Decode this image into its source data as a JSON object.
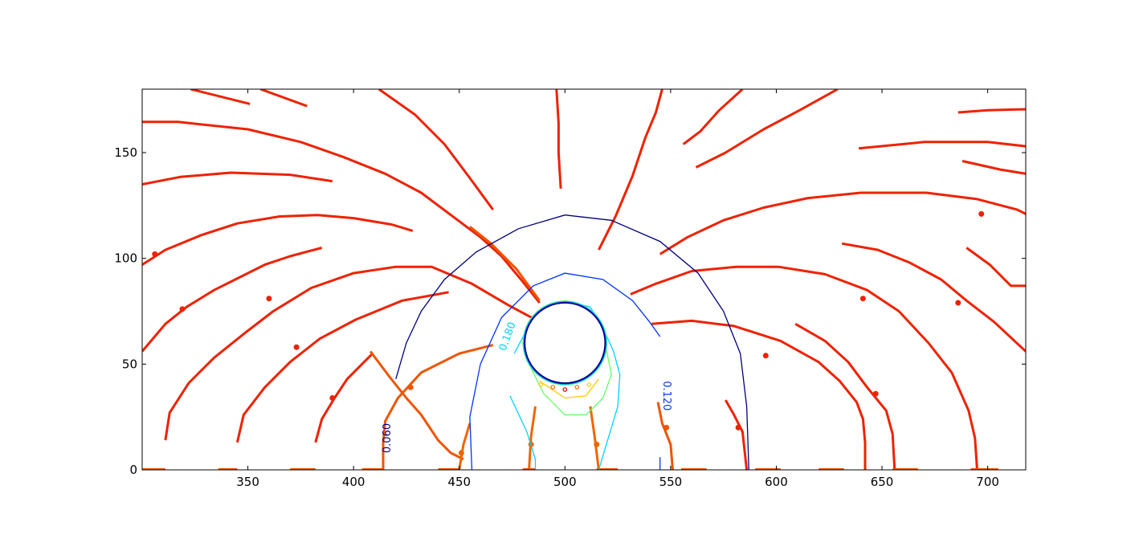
{
  "chart_data": {
    "type": "line",
    "title": "",
    "xlabel": "",
    "ylabel": "",
    "xlim": [
      300,
      718
    ],
    "ylim": [
      0,
      180
    ],
    "xticks": [
      350,
      400,
      450,
      500,
      550,
      600,
      650,
      700
    ],
    "yticks": [
      0,
      50,
      100,
      150
    ],
    "xtick_labels": [
      "350",
      "400",
      "450",
      "500",
      "550",
      "600",
      "650",
      "700"
    ],
    "ytick_labels": [
      "0",
      "50",
      "100",
      "150"
    ],
    "grid": false,
    "obstacle": {
      "center": [
        500,
        60
      ],
      "radius": 19
    },
    "contours": [
      {
        "level": "0.060",
        "color": "#00007f",
        "points": [
          [
            420,
            43
          ],
          [
            425,
            60
          ],
          [
            432,
            75
          ],
          [
            443,
            90
          ],
          [
            458,
            103
          ],
          [
            478,
            114
          ],
          [
            500,
            120.5
          ],
          [
            522,
            118
          ],
          [
            545,
            108
          ],
          [
            563,
            93
          ],
          [
            575,
            75
          ],
          [
            583,
            55
          ],
          [
            586,
            30
          ],
          [
            587,
            0
          ]
        ],
        "label": {
          "text": "0.060",
          "x": 416,
          "y": 15,
          "rotate": -90
        }
      },
      {
        "level": "0.120",
        "color": "#0033ff",
        "points": [
          [
            456,
            0
          ],
          [
            455,
            25
          ],
          [
            460,
            50
          ],
          [
            470,
            72
          ],
          [
            485,
            87
          ],
          [
            500,
            93
          ],
          [
            518,
            90
          ],
          [
            532,
            80
          ],
          [
            540,
            70
          ],
          [
            545,
            63
          ]
        ],
        "extra": [
          [
            [
              545,
              0
            ],
            [
              545,
              6
            ]
          ]
        ],
        "label": {
          "text": "0.120",
          "x": 548,
          "y": 35,
          "rotate": 90
        }
      },
      {
        "level": "0.180",
        "color": "#00d4ff",
        "points": [
          [
            474,
            35
          ],
          [
            482,
            18
          ],
          [
            486,
            5
          ],
          [
            486,
            0
          ]
        ],
        "extra": [
          [
            [
              476,
              55
            ],
            [
              485,
              72
            ],
            [
              500,
              80
            ],
            [
              512,
              77
            ],
            [
              518,
              67
            ],
            [
              523,
              56
            ],
            [
              526,
              45
            ],
            [
              525,
              30
            ],
            [
              519,
              10
            ],
            [
              516,
              0
            ]
          ]
        ],
        "label": {
          "text": "0.180",
          "x": 473,
          "y": 63,
          "rotate": -70
        }
      },
      {
        "level": "green",
        "color": "#66ff66",
        "points": [
          [
            483,
            60
          ],
          [
            484,
            48
          ],
          [
            490,
            36
          ],
          [
            500,
            26
          ],
          [
            510,
            26
          ],
          [
            518,
            34
          ],
          [
            522,
            45
          ],
          [
            520,
            55
          ],
          [
            518,
            62
          ]
        ]
      },
      {
        "level": "yellow",
        "color": "#ffcc00",
        "points": [
          [
            488,
            42
          ],
          [
            500,
            34
          ],
          [
            510,
            35
          ],
          [
            516,
            43
          ]
        ]
      }
    ],
    "streamlines": [
      {
        "color": "#ee2200",
        "points": [
          [
            300,
            164.5
          ],
          [
            317,
            164.5
          ],
          [
            350,
            161
          ],
          [
            375,
            155
          ],
          [
            395,
            148
          ],
          [
            415,
            140
          ],
          [
            432,
            131
          ],
          [
            448,
            119
          ],
          [
            460,
            110
          ],
          [
            470,
            101
          ],
          [
            480,
            89
          ],
          [
            488,
            79
          ]
        ]
      },
      {
        "color": "#ee2200",
        "points": [
          [
            300,
            135
          ],
          [
            318,
            138.5
          ],
          [
            342,
            140.5
          ],
          [
            370,
            139.5
          ],
          [
            390,
            136.5
          ]
        ]
      },
      {
        "color": "#ee2200",
        "points": [
          [
            300,
            97
          ],
          [
            311,
            104
          ],
          [
            328,
            111
          ],
          [
            345,
            116.5
          ],
          [
            365,
            119.8
          ],
          [
            383,
            120.5
          ],
          [
            400,
            119
          ],
          [
            418,
            116
          ],
          [
            428,
            113
          ]
        ],
        "arrow": [
          306,
          102
        ]
      },
      {
        "color": "#ee2200",
        "points": [
          [
            300,
            56
          ],
          [
            311,
            69
          ],
          [
            321,
            77
          ],
          [
            334,
            85
          ],
          [
            346,
            91
          ],
          [
            358,
            97
          ],
          [
            370,
            101
          ],
          [
            385,
            105
          ]
        ],
        "arrow": [
          319,
          76
        ]
      },
      {
        "color": "#ee2200",
        "points": [
          [
            311,
            14
          ],
          [
            313,
            27
          ],
          [
            322,
            41
          ],
          [
            334,
            53
          ],
          [
            349,
            65
          ],
          [
            362,
            75
          ],
          [
            380,
            86
          ],
          [
            400,
            93
          ],
          [
            420,
            96
          ],
          [
            437,
            96
          ],
          [
            456,
            88
          ],
          [
            473,
            78
          ],
          [
            488,
            70
          ]
        ],
        "arrow": [
          360,
          81
        ]
      },
      {
        "color": "#ee2200",
        "points": [
          [
            345,
            13
          ],
          [
            348,
            26
          ],
          [
            358,
            39
          ],
          [
            370,
            51
          ],
          [
            384,
            62
          ],
          [
            401,
            71
          ],
          [
            423,
            80
          ],
          [
            445,
            84
          ]
        ],
        "arrow": [
          373,
          58
        ]
      },
      {
        "color": "#ee2200",
        "points": [
          [
            382,
            13
          ],
          [
            385,
            24
          ],
          [
            391,
            34
          ],
          [
            397,
            43
          ],
          [
            404,
            50
          ],
          [
            409,
            55
          ]
        ],
        "arrow": [
          390,
          34
        ]
      },
      {
        "color": "#ee2200",
        "points": [
          [
            323,
            180
          ],
          [
            351,
            173
          ]
        ]
      },
      {
        "color": "#ee2200",
        "points": [
          [
            356,
            180
          ],
          [
            378,
            172
          ]
        ]
      },
      {
        "color": "#ee2200",
        "points": [
          [
            412,
            180
          ],
          [
            429,
            168
          ],
          [
            443,
            154
          ],
          [
            455,
            138
          ],
          [
            466,
            123
          ]
        ]
      },
      {
        "color": "#ee2200",
        "points": [
          [
            496,
            180
          ],
          [
            497,
            164
          ],
          [
            497,
            150
          ],
          [
            498,
            133
          ]
        ]
      },
      {
        "color": "#ee2200",
        "points": [
          [
            546,
            180
          ],
          [
            543,
            169
          ],
          [
            538,
            157
          ],
          [
            532,
            139
          ],
          [
            524,
            120
          ],
          [
            516,
            104
          ]
        ]
      },
      {
        "color": "#ee2200",
        "points": [
          [
            584,
            180
          ],
          [
            573,
            170
          ],
          [
            564,
            160
          ],
          [
            556,
            154
          ]
        ]
      },
      {
        "color": "#ee2200",
        "points": [
          [
            629,
            180
          ],
          [
            611,
            170
          ],
          [
            594,
            161
          ],
          [
            576,
            150
          ],
          [
            562,
            143
          ]
        ]
      },
      {
        "color": "#ee2200",
        "points": [
          [
            686,
            169
          ],
          [
            700,
            170
          ],
          [
            718,
            170.5
          ]
        ]
      },
      {
        "color": "#ee2200",
        "points": [
          [
            639,
            152
          ],
          [
            670,
            155
          ],
          [
            700,
            155
          ],
          [
            718,
            153
          ]
        ]
      },
      {
        "color": "#ee2200",
        "points": [
          [
            688,
            146
          ],
          [
            706,
            142
          ],
          [
            718,
            140
          ]
        ]
      },
      {
        "color": "#ee2200",
        "points": [
          [
            545,
            102
          ],
          [
            558,
            110
          ],
          [
            575,
            118
          ],
          [
            594,
            124
          ],
          [
            615,
            128.5
          ],
          [
            640,
            131
          ],
          [
            671,
            131
          ],
          [
            695,
            128
          ],
          [
            714,
            123
          ],
          [
            718,
            121
          ]
        ],
        "arrow": [
          697,
          121
        ]
      },
      {
        "color": "#ee2200",
        "points": [
          [
            631,
            107
          ],
          [
            648,
            104
          ],
          [
            663,
            98
          ],
          [
            678,
            90
          ],
          [
            690,
            80
          ],
          [
            703,
            70
          ],
          [
            718,
            56
          ]
        ],
        "arrow": [
          686,
          79
        ]
      },
      {
        "color": "#ee2200",
        "points": [
          [
            690,
            105
          ],
          [
            701,
            97
          ],
          [
            711,
            87
          ],
          [
            718,
            87
          ]
        ]
      },
      {
        "color": "#ee2200",
        "points": [
          [
            531,
            83
          ],
          [
            543,
            88
          ],
          [
            560,
            94
          ],
          [
            581,
            96
          ],
          [
            601,
            96
          ],
          [
            623,
            92.5
          ],
          [
            643,
            85
          ],
          [
            658,
            75
          ],
          [
            672,
            60
          ],
          [
            683,
            46
          ],
          [
            691,
            28
          ],
          [
            694,
            15
          ],
          [
            695,
            0
          ]
        ],
        "arrow": [
          641,
          81
        ]
      },
      {
        "color": "#ee2200",
        "points": [
          [
            609,
            69
          ],
          [
            623,
            61
          ],
          [
            634,
            51
          ],
          [
            643,
            39
          ],
          [
            652,
            28
          ],
          [
            655,
            17
          ],
          [
            656,
            0
          ]
        ],
        "arrow": [
          647,
          36
        ]
      },
      {
        "color": "#ee2200",
        "points": [
          [
            541,
            69
          ],
          [
            560,
            70.5
          ],
          [
            580,
            68
          ],
          [
            602,
            61
          ],
          [
            620,
            51
          ],
          [
            630,
            42
          ],
          [
            638,
            32
          ],
          [
            641,
            24
          ],
          [
            642,
            13
          ],
          [
            642,
            0
          ]
        ],
        "arrow": [
          595,
          54
        ]
      },
      {
        "color": "#ee2200",
        "points": [
          [
            576,
            33
          ],
          [
            580,
            26
          ],
          [
            584,
            18
          ],
          [
            586,
            0
          ]
        ],
        "arrow": [
          582,
          20
        ]
      },
      {
        "color": "#ee5500",
        "points": [
          [
            408,
            56
          ],
          [
            417,
            44
          ],
          [
            425,
            34
          ],
          [
            432,
            26
          ],
          [
            440,
            14
          ],
          [
            446,
            8
          ],
          [
            452,
            5
          ]
        ]
      },
      {
        "color": "#ee5500",
        "points": [
          [
            466,
            59
          ],
          [
            450,
            55
          ],
          [
            432,
            46
          ],
          [
            421,
            34
          ],
          [
            415,
            23
          ],
          [
            414,
            13
          ],
          [
            414,
            0
          ]
        ],
        "arrow": [
          427,
          39
        ]
      },
      {
        "color": "#ee6600",
        "points": [
          [
            455,
            22
          ],
          [
            452,
            12
          ],
          [
            450,
            0
          ]
        ],
        "arrow": [
          451,
          8
        ]
      },
      {
        "color": "#ee6600",
        "points": [
          [
            486,
            30
          ],
          [
            484,
            16
          ],
          [
            483,
            0
          ]
        ],
        "arrow": [
          484,
          12
        ]
      },
      {
        "color": "#ee6600",
        "points": [
          [
            512,
            30
          ],
          [
            514,
            16
          ],
          [
            516,
            0
          ]
        ],
        "arrow": [
          515,
          12
        ]
      },
      {
        "color": "#ee5500",
        "points": [
          [
            544,
            32
          ],
          [
            546,
            22
          ],
          [
            550,
            12
          ],
          [
            551,
            0
          ]
        ],
        "arrow": [
          548,
          20
        ]
      },
      {
        "color": "#ee5500",
        "points": [
          [
            488,
            80
          ],
          [
            477,
            95
          ],
          [
            465,
            107
          ],
          [
            455,
            115
          ]
        ]
      }
    ],
    "baseline_segments": [
      [
        300,
        311
      ],
      [
        336,
        345
      ],
      [
        370,
        382
      ],
      [
        404,
        414
      ],
      [
        440,
        450
      ],
      [
        480,
        486
      ],
      [
        515,
        525
      ],
      [
        555,
        567
      ],
      [
        590,
        602
      ],
      [
        620,
        632
      ],
      [
        655,
        667
      ],
      [
        692,
        705
      ]
    ]
  }
}
